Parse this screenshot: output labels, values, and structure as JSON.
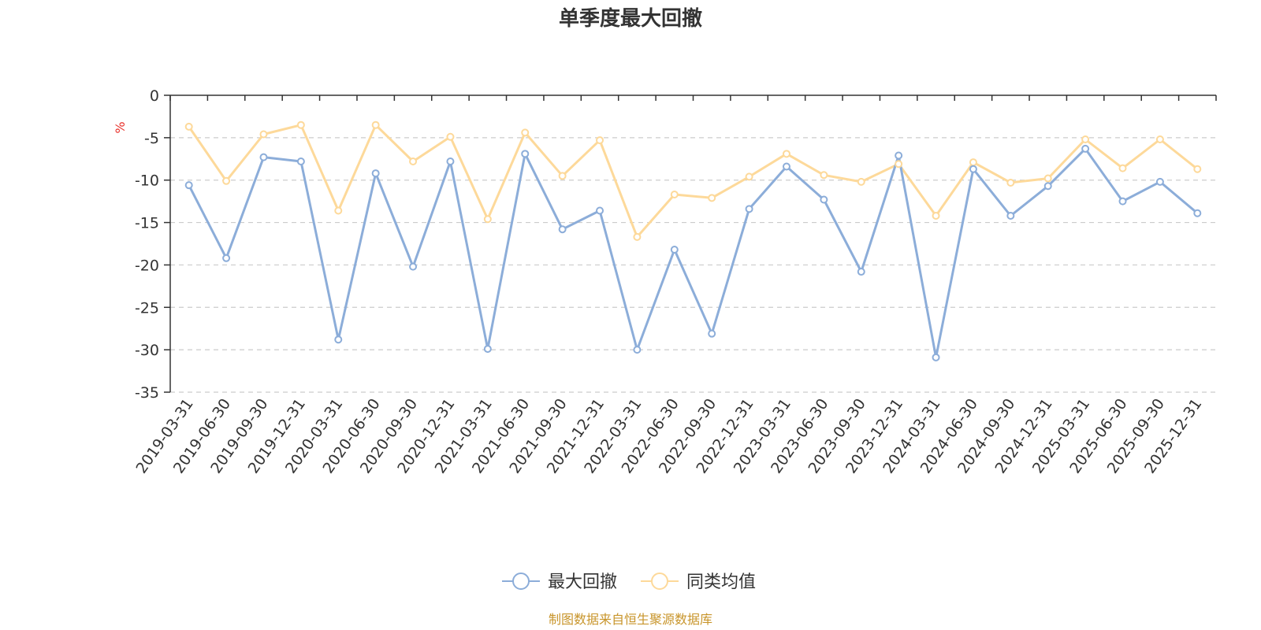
{
  "chart_data": {
    "type": "line",
    "title": "单季度最大回撤",
    "ylabel": "%",
    "xlabel": "",
    "ylim": [
      -35,
      0
    ],
    "yticks": [
      0,
      -5,
      -10,
      -15,
      -20,
      -25,
      -30,
      -35
    ],
    "grid": "horizontal dashed",
    "legend_position": "bottom-center",
    "categories": [
      "2019-03-31",
      "2019-06-30",
      "2019-09-30",
      "2019-12-31",
      "2020-03-31",
      "2020-06-30",
      "2020-09-30",
      "2020-12-31",
      "2021-03-31",
      "2021-06-30",
      "2021-09-30",
      "2021-12-31",
      "2022-03-31",
      "2022-06-30",
      "2022-09-30",
      "2022-12-31",
      "2023-03-31",
      "2023-06-30",
      "2023-09-30",
      "2023-12-31",
      "2024-03-31",
      "2024-06-30",
      "2024-09-30",
      "2024-12-31",
      "2025-03-31",
      "2025-06-30",
      "2025-09-30",
      "2025-12-31"
    ],
    "series": [
      {
        "name": "最大回撤",
        "color": "#8cadd9",
        "values": [
          -10.6,
          -19.2,
          -7.3,
          -7.8,
          -28.8,
          -9.2,
          -20.2,
          -7.8,
          -29.9,
          -6.9,
          -15.8,
          -13.6,
          -30.0,
          -18.2,
          -28.1,
          -13.4,
          -8.4,
          -12.3,
          -20.8,
          -7.1,
          -30.9,
          -8.7,
          -14.2,
          -10.7,
          -6.3,
          -12.5,
          -10.2,
          -13.9
        ]
      },
      {
        "name": "同类均值",
        "color": "#fdd99a",
        "values": [
          -3.7,
          -10.1,
          -4.6,
          -3.5,
          -13.6,
          -3.5,
          -7.8,
          -4.9,
          -14.6,
          -4.4,
          -9.5,
          -5.3,
          -16.7,
          -11.7,
          -12.1,
          -9.6,
          -6.9,
          -9.4,
          -10.2,
          -8.1,
          -14.2,
          -7.9,
          -10.3,
          -9.8,
          -5.2,
          -8.6,
          -5.2,
          -8.7
        ]
      }
    ],
    "source_note": "制图数据来自恒生聚源数据库"
  }
}
